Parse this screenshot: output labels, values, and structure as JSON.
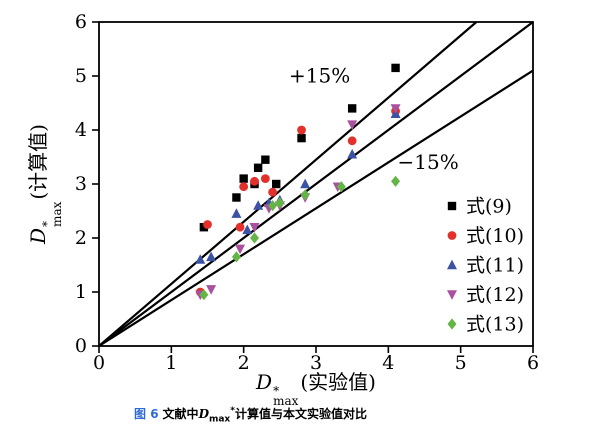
{
  "chart_data": {
    "type": "scatter",
    "title": "",
    "xlabel": {
      "symbol": "D",
      "sup": "*",
      "sub": "max",
      "unit": "(实验值)"
    },
    "ylabel": {
      "symbol": "D",
      "sup": "*",
      "sub": "max",
      "unit": "(计算值)"
    },
    "xlim": [
      0,
      6
    ],
    "ylim": [
      0,
      6
    ],
    "tick_step": 1,
    "grid": false,
    "legend_position": "inside-lower-right",
    "reference_lines": [
      {
        "slope": 1.15,
        "label": "+15%",
        "label_at": [
          3.05,
          4.88
        ]
      },
      {
        "slope": 1.0,
        "label": "",
        "label_at": null
      },
      {
        "slope": 0.85,
        "label": "−15%",
        "label_at": [
          4.55,
          3.28
        ]
      }
    ],
    "series": [
      {
        "name": "式(9)",
        "marker": "square",
        "color": "#000000",
        "points": [
          [
            1.45,
            2.2
          ],
          [
            1.9,
            2.75
          ],
          [
            2.0,
            3.1
          ],
          [
            2.15,
            3.0
          ],
          [
            2.2,
            3.3
          ],
          [
            2.3,
            3.45
          ],
          [
            2.45,
            3.0
          ],
          [
            2.8,
            3.85
          ],
          [
            3.5,
            4.4
          ],
          [
            4.1,
            5.15
          ]
        ]
      },
      {
        "name": "式(10)",
        "marker": "circle",
        "color": "#e2302b",
        "points": [
          [
            1.4,
            1.0
          ],
          [
            1.5,
            2.25
          ],
          [
            1.95,
            2.2
          ],
          [
            2.0,
            2.95
          ],
          [
            2.15,
            3.05
          ],
          [
            2.3,
            3.1
          ],
          [
            2.4,
            2.85
          ],
          [
            2.8,
            4.0
          ],
          [
            3.5,
            3.8
          ],
          [
            4.1,
            4.35
          ]
        ]
      },
      {
        "name": "式(11)",
        "marker": "triangle-up",
        "color": "#3c53a4",
        "points": [
          [
            1.4,
            1.6
          ],
          [
            1.55,
            1.65
          ],
          [
            1.9,
            2.45
          ],
          [
            2.05,
            2.15
          ],
          [
            2.2,
            2.6
          ],
          [
            2.35,
            2.65
          ],
          [
            2.5,
            2.7
          ],
          [
            2.85,
            3.0
          ],
          [
            3.5,
            3.55
          ],
          [
            4.1,
            4.3
          ]
        ]
      },
      {
        "name": "式(12)",
        "marker": "triangle-down",
        "color": "#a9519f",
        "points": [
          [
            1.4,
            0.95
          ],
          [
            1.55,
            1.05
          ],
          [
            1.95,
            1.8
          ],
          [
            2.15,
            2.2
          ],
          [
            2.35,
            2.55
          ],
          [
            2.5,
            2.6
          ],
          [
            2.85,
            2.75
          ],
          [
            3.3,
            2.95
          ],
          [
            3.5,
            4.1
          ],
          [
            4.1,
            4.4
          ]
        ]
      },
      {
        "name": "式(13)",
        "marker": "diamond",
        "color": "#63b545",
        "points": [
          [
            1.45,
            0.95
          ],
          [
            1.9,
            1.65
          ],
          [
            2.15,
            2.0
          ],
          [
            2.4,
            2.6
          ],
          [
            2.5,
            2.65
          ],
          [
            2.85,
            2.8
          ],
          [
            3.35,
            2.95
          ],
          [
            4.1,
            3.05
          ]
        ]
      }
    ]
  },
  "caption": {
    "fig_label": "图 6",
    "text_before": "文献中",
    "symbol": "D",
    "sub": "max",
    "sup": "*",
    "text_after": "计算值与本文实验值对比"
  },
  "colors": {
    "axis": "#000000",
    "reference_line": "#000000",
    "caption_label": "#2f6bd7"
  }
}
